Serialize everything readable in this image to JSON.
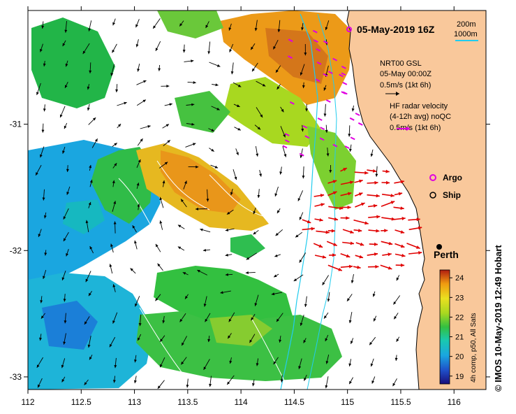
{
  "title": "05-May-2019 16Z",
  "depth_legend": {
    "line1": "200m",
    "line2": "1000m"
  },
  "wind_legend": {
    "line1": "NRT00 GSL",
    "line2": "05-May 00:00Z",
    "line3": "0.5m/s (1kt 6h)"
  },
  "radar_legend": {
    "line1": "HF radar velocity",
    "line2": "(4-12h avg) noQC",
    "line3": "0.5m/s (1kt 6h)"
  },
  "markers": {
    "argo": "Argo",
    "ship": "Ship"
  },
  "city": "Perth",
  "axes": {
    "x_ticks": [
      "112",
      "112.5",
      "113",
      "113.5",
      "114",
      "114.5",
      "115",
      "115.5",
      "116"
    ],
    "y_ticks": [
      "-31",
      "-32",
      "-33"
    ],
    "lon_range": [
      112,
      116.3
    ],
    "lat_range": [
      -33.1,
      -30.1
    ]
  },
  "colorbar": {
    "label": "4h comp, p50, All Sats",
    "ticks": [
      "24",
      "23",
      "22",
      "21",
      "20",
      "19"
    ],
    "range": [
      18.6,
      24.4
    ]
  },
  "credit": "© IMOS 10-May-2019 12:49 Hobart",
  "colors": {
    "land": "#f9c89b",
    "current": "#000000",
    "radar": "#e00000",
    "argo": "#e000e0",
    "depth": "#22ccee"
  }
}
